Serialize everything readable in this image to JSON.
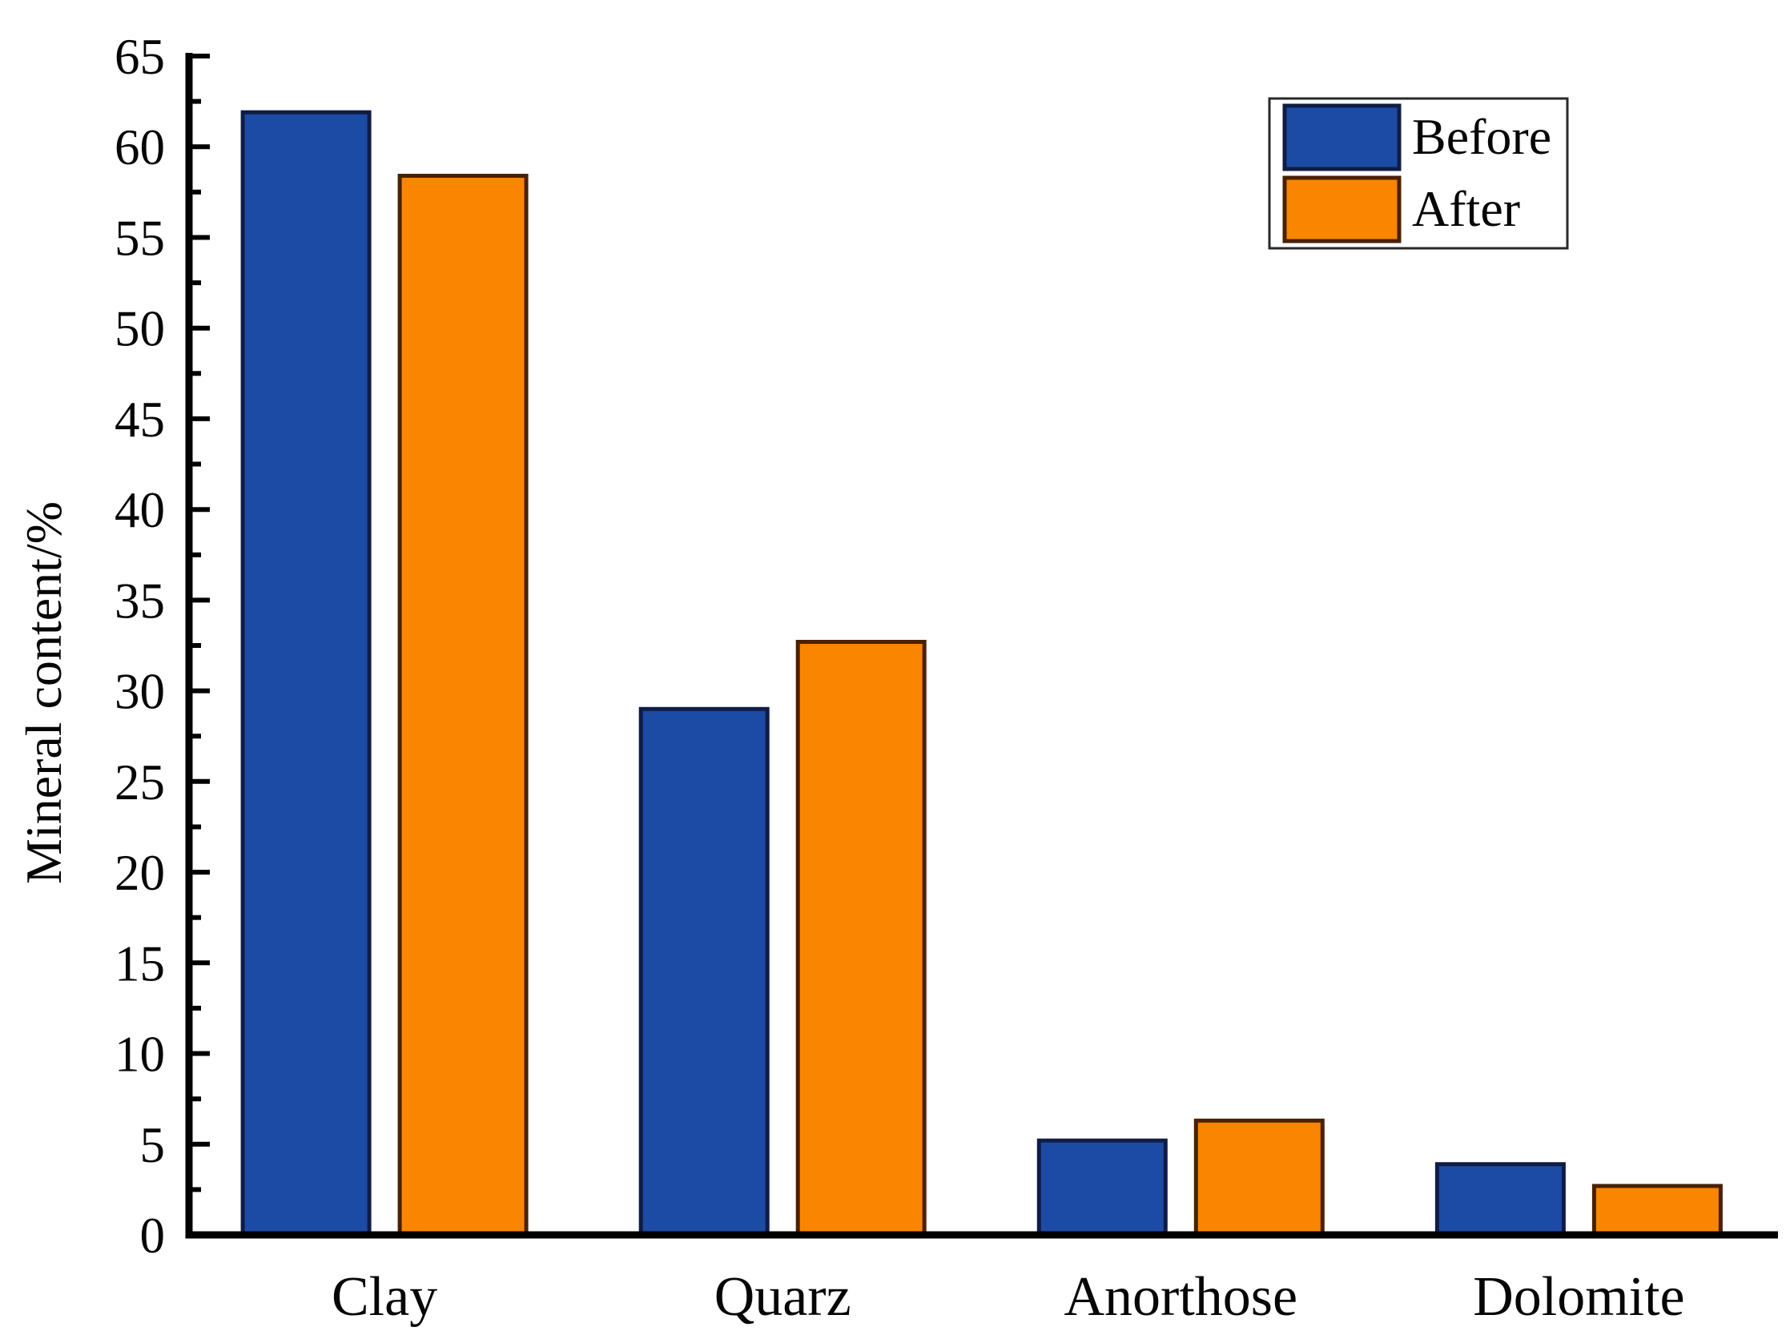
{
  "chart_data": {
    "type": "bar",
    "title": "",
    "xlabel": "",
    "ylabel": "Mineral content/%",
    "categories": [
      "Clay",
      "Quarz",
      "Anorthose",
      "Dolomite"
    ],
    "series": [
      {
        "name": "Before",
        "color": "#1C4BA5",
        "border_color": "#101C45",
        "values": [
          61.9,
          29.0,
          5.2,
          3.9
        ]
      },
      {
        "name": "After",
        "color": "#FA8500",
        "border_color": "#4A2000",
        "values": [
          58.4,
          32.7,
          6.3,
          2.7
        ]
      }
    ],
    "ylim": [
      0,
      65
    ],
    "ytick_step": 5,
    "yticks": [
      0,
      5,
      10,
      15,
      20,
      25,
      30,
      35,
      40,
      45,
      50,
      55,
      60,
      65
    ],
    "minor_ytick_step": 2.5,
    "grid": false,
    "legend": {
      "position": "top-right",
      "border_color": "#2A2A2A"
    },
    "axis_color": "#000000",
    "background_color": "#FFFFFF",
    "tick_direction": "in"
  }
}
